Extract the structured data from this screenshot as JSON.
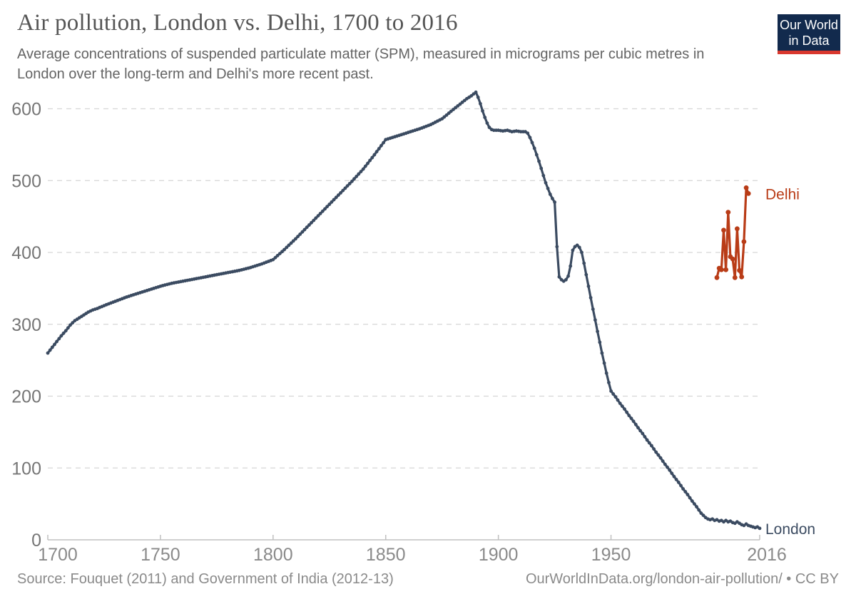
{
  "header": {
    "title": "Air pollution, London vs. Delhi, 1700 to 2016",
    "subtitle": "Average concentrations of suspended particulate matter (SPM), measured in micrograms per cubic metres in London over the long-term and Delhi's more recent past.",
    "subtitle_lines": [
      "Average concentrations of suspended particulate matter (SPM), measured in micrograms per cubic metres in",
      "London over the long-term and Delhi's more recent past."
    ]
  },
  "logo": {
    "line1": "Our World",
    "line2": "in Data",
    "background": "#122a4d",
    "bar_color": "#d9382e",
    "text_color": "#ffffff"
  },
  "footer": {
    "source": "Source: Fouquet (2011) and Government of India (2012-13)",
    "citation": "OurWorldInData.org/london-air-pollution/ • CC BY"
  },
  "theme": {
    "title_color": "#555555",
    "subtitle_color": "#646464",
    "tick_label_color": "#8a8a8a",
    "grid_color": "#d6d6d6",
    "axis_color": "#c0c0c0"
  },
  "chart_data": {
    "type": "line",
    "title": "Air pollution, London vs. Delhi, 1700 to 2016",
    "xlabel": "",
    "ylabel": "",
    "x_range": [
      1700,
      2016
    ],
    "y_range": [
      0,
      600
    ],
    "x_ticks": [
      1700,
      1750,
      1800,
      1850,
      1900,
      1950,
      2016
    ],
    "y_ticks": [
      0,
      100,
      200,
      300,
      400,
      500,
      600
    ],
    "grid": "horizontal-dashed",
    "legend_position": "end-of-line-labels",
    "markers": "annual",
    "series": [
      {
        "name": "London",
        "color": "#3b4b61",
        "line_width": 3.2,
        "marker_radius": 2.4,
        "points": [
          [
            1700,
            260
          ],
          [
            1702,
            268
          ],
          [
            1704,
            276
          ],
          [
            1706,
            284
          ],
          [
            1708,
            291
          ],
          [
            1710,
            299
          ],
          [
            1712,
            305
          ],
          [
            1714,
            309
          ],
          [
            1716,
            313
          ],
          [
            1718,
            317
          ],
          [
            1720,
            320
          ],
          [
            1722,
            322
          ],
          [
            1725,
            326
          ],
          [
            1730,
            332
          ],
          [
            1735,
            338
          ],
          [
            1740,
            343
          ],
          [
            1745,
            348
          ],
          [
            1750,
            353
          ],
          [
            1755,
            357
          ],
          [
            1760,
            360
          ],
          [
            1765,
            363
          ],
          [
            1770,
            366
          ],
          [
            1775,
            369
          ],
          [
            1780,
            372
          ],
          [
            1785,
            375
          ],
          [
            1790,
            379
          ],
          [
            1795,
            384
          ],
          [
            1800,
            390
          ],
          [
            1805,
            404
          ],
          [
            1810,
            419
          ],
          [
            1815,
            435
          ],
          [
            1820,
            451
          ],
          [
            1825,
            467
          ],
          [
            1830,
            483
          ],
          [
            1835,
            499
          ],
          [
            1840,
            516
          ],
          [
            1845,
            536
          ],
          [
            1850,
            557
          ],
          [
            1855,
            562
          ],
          [
            1860,
            567
          ],
          [
            1865,
            572
          ],
          [
            1870,
            578
          ],
          [
            1875,
            586
          ],
          [
            1880,
            599
          ],
          [
            1882,
            604
          ],
          [
            1884,
            609
          ],
          [
            1886,
            614
          ],
          [
            1888,
            618
          ],
          [
            1890,
            623
          ],
          [
            1891,
            616
          ],
          [
            1892,
            607
          ],
          [
            1893,
            597
          ],
          [
            1894,
            588
          ],
          [
            1895,
            580
          ],
          [
            1896,
            574
          ],
          [
            1897,
            571
          ],
          [
            1898,
            570
          ],
          [
            1900,
            570
          ],
          [
            1902,
            569
          ],
          [
            1904,
            570
          ],
          [
            1906,
            568
          ],
          [
            1908,
            569
          ],
          [
            1910,
            568
          ],
          [
            1912,
            568
          ],
          [
            1913,
            566
          ],
          [
            1914,
            560
          ],
          [
            1915,
            553
          ],
          [
            1916,
            545
          ],
          [
            1917,
            536
          ],
          [
            1918,
            527
          ],
          [
            1919,
            517
          ],
          [
            1920,
            507
          ],
          [
            1921,
            497
          ],
          [
            1922,
            489
          ],
          [
            1923,
            481
          ],
          [
            1924,
            475
          ],
          [
            1925,
            470
          ],
          [
            1926,
            408
          ],
          [
            1927,
            366
          ],
          [
            1928,
            362
          ],
          [
            1929,
            360
          ],
          [
            1930,
            362
          ],
          [
            1931,
            367
          ],
          [
            1932,
            381
          ],
          [
            1933,
            403
          ],
          [
            1934,
            408
          ],
          [
            1935,
            410
          ],
          [
            1936,
            407
          ],
          [
            1937,
            400
          ],
          [
            1938,
            385
          ],
          [
            1939,
            369
          ],
          [
            1940,
            353
          ],
          [
            1941,
            337
          ],
          [
            1942,
            321
          ],
          [
            1943,
            306
          ],
          [
            1944,
            290
          ],
          [
            1945,
            275
          ],
          [
            1946,
            260
          ],
          [
            1947,
            246
          ],
          [
            1948,
            232
          ],
          [
            1949,
            219
          ],
          [
            1950,
            207
          ],
          [
            1952,
            199
          ],
          [
            1954,
            190
          ],
          [
            1956,
            182
          ],
          [
            1958,
            173
          ],
          [
            1960,
            165
          ],
          [
            1962,
            156
          ],
          [
            1964,
            148
          ],
          [
            1966,
            139
          ],
          [
            1968,
            131
          ],
          [
            1970,
            122
          ],
          [
            1972,
            114
          ],
          [
            1974,
            105
          ],
          [
            1976,
            97
          ],
          [
            1978,
            88
          ],
          [
            1980,
            80
          ],
          [
            1982,
            71
          ],
          [
            1984,
            63
          ],
          [
            1986,
            54
          ],
          [
            1988,
            46
          ],
          [
            1990,
            37
          ],
          [
            1992,
            31
          ],
          [
            1993,
            29
          ],
          [
            1994,
            28
          ],
          [
            1995,
            29
          ],
          [
            1996,
            27
          ],
          [
            1997,
            28
          ],
          [
            1998,
            26
          ],
          [
            1999,
            27
          ],
          [
            2000,
            25
          ],
          [
            2001,
            27
          ],
          [
            2002,
            25
          ],
          [
            2003,
            26
          ],
          [
            2004,
            24
          ],
          [
            2005,
            23
          ],
          [
            2006,
            25
          ],
          [
            2007,
            23
          ],
          [
            2008,
            21
          ],
          [
            2009,
            20
          ],
          [
            2010,
            22
          ],
          [
            2011,
            20
          ],
          [
            2012,
            19
          ],
          [
            2013,
            18
          ],
          [
            2014,
            17
          ],
          [
            2015,
            18
          ],
          [
            2016,
            16
          ]
        ]
      },
      {
        "name": "Delhi",
        "color": "#b93c17",
        "line_width": 3.2,
        "marker_radius": 3.4,
        "points": [
          [
            1997,
            365
          ],
          [
            1998,
            378
          ],
          [
            1999,
            376
          ],
          [
            2000,
            431
          ],
          [
            2001,
            376
          ],
          [
            2002,
            456
          ],
          [
            2003,
            394
          ],
          [
            2004,
            391
          ],
          [
            2005,
            365
          ],
          [
            2006,
            433
          ],
          [
            2007,
            375
          ],
          [
            2008,
            366
          ],
          [
            2009,
            415
          ],
          [
            2010,
            490
          ],
          [
            2011,
            482
          ]
        ]
      }
    ]
  }
}
